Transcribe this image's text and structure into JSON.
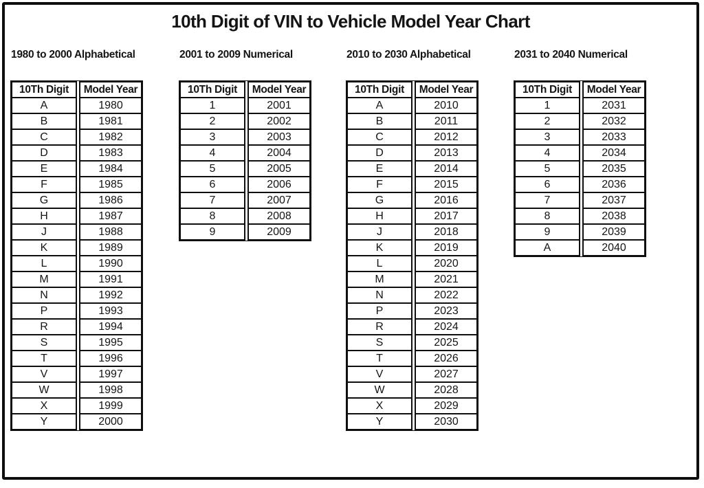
{
  "title": "10th Digit of VIN to Vehicle Model Year Chart",
  "colors": {
    "ink": "#0e0e0e",
    "background": "#ffffff"
  },
  "tables": [
    {
      "section": "1980 to 2000 Alphabetical",
      "col1": "10Th Digit",
      "col2": "Model Year",
      "rows": [
        [
          "A",
          "1980"
        ],
        [
          "B",
          "1981"
        ],
        [
          "C",
          "1982"
        ],
        [
          "D",
          "1983"
        ],
        [
          "E",
          "1984"
        ],
        [
          "F",
          "1985"
        ],
        [
          "G",
          "1986"
        ],
        [
          "H",
          "1987"
        ],
        [
          "J",
          "1988"
        ],
        [
          "K",
          "1989"
        ],
        [
          "L",
          "1990"
        ],
        [
          "M",
          "1991"
        ],
        [
          "N",
          "1992"
        ],
        [
          "P",
          "1993"
        ],
        [
          "R",
          "1994"
        ],
        [
          "S",
          "1995"
        ],
        [
          "T",
          "1996"
        ],
        [
          "V",
          "1997"
        ],
        [
          "W",
          "1998"
        ],
        [
          "X",
          "1999"
        ],
        [
          "Y",
          "2000"
        ]
      ]
    },
    {
      "section": "2001 to 2009 Numerical",
      "col1": "10Th Digit",
      "col2": "Model Year",
      "rows": [
        [
          "1",
          "2001"
        ],
        [
          "2",
          "2002"
        ],
        [
          "3",
          "2003"
        ],
        [
          "4",
          "2004"
        ],
        [
          "5",
          "2005"
        ],
        [
          "6",
          "2006"
        ],
        [
          "7",
          "2007"
        ],
        [
          "8",
          "2008"
        ],
        [
          "9",
          "2009"
        ]
      ]
    },
    {
      "section": "2010 to 2030 Alphabetical",
      "col1": "10Th Digit",
      "col2": "Model Year",
      "rows": [
        [
          "A",
          "2010"
        ],
        [
          "B",
          "2011"
        ],
        [
          "C",
          "2012"
        ],
        [
          "D",
          "2013"
        ],
        [
          "E",
          "2014"
        ],
        [
          "F",
          "2015"
        ],
        [
          "G",
          "2016"
        ],
        [
          "H",
          "2017"
        ],
        [
          "J",
          "2018"
        ],
        [
          "K",
          "2019"
        ],
        [
          "L",
          "2020"
        ],
        [
          "M",
          "2021"
        ],
        [
          "N",
          "2022"
        ],
        [
          "P",
          "2023"
        ],
        [
          "R",
          "2024"
        ],
        [
          "S",
          "2025"
        ],
        [
          "T",
          "2026"
        ],
        [
          "V",
          "2027"
        ],
        [
          "W",
          "2028"
        ],
        [
          "X",
          "2029"
        ],
        [
          "Y",
          "2030"
        ]
      ]
    },
    {
      "section": "2031 to 2040 Numerical",
      "col1": "10Th Digit",
      "col2": "Model Year",
      "rows": [
        [
          "1",
          "2031"
        ],
        [
          "2",
          "2032"
        ],
        [
          "3",
          "2033"
        ],
        [
          "4",
          "2034"
        ],
        [
          "5",
          "2035"
        ],
        [
          "6",
          "2036"
        ],
        [
          "7",
          "2037"
        ],
        [
          "8",
          "2038"
        ],
        [
          "9",
          "2039"
        ],
        [
          "A",
          "2040"
        ]
      ]
    }
  ]
}
